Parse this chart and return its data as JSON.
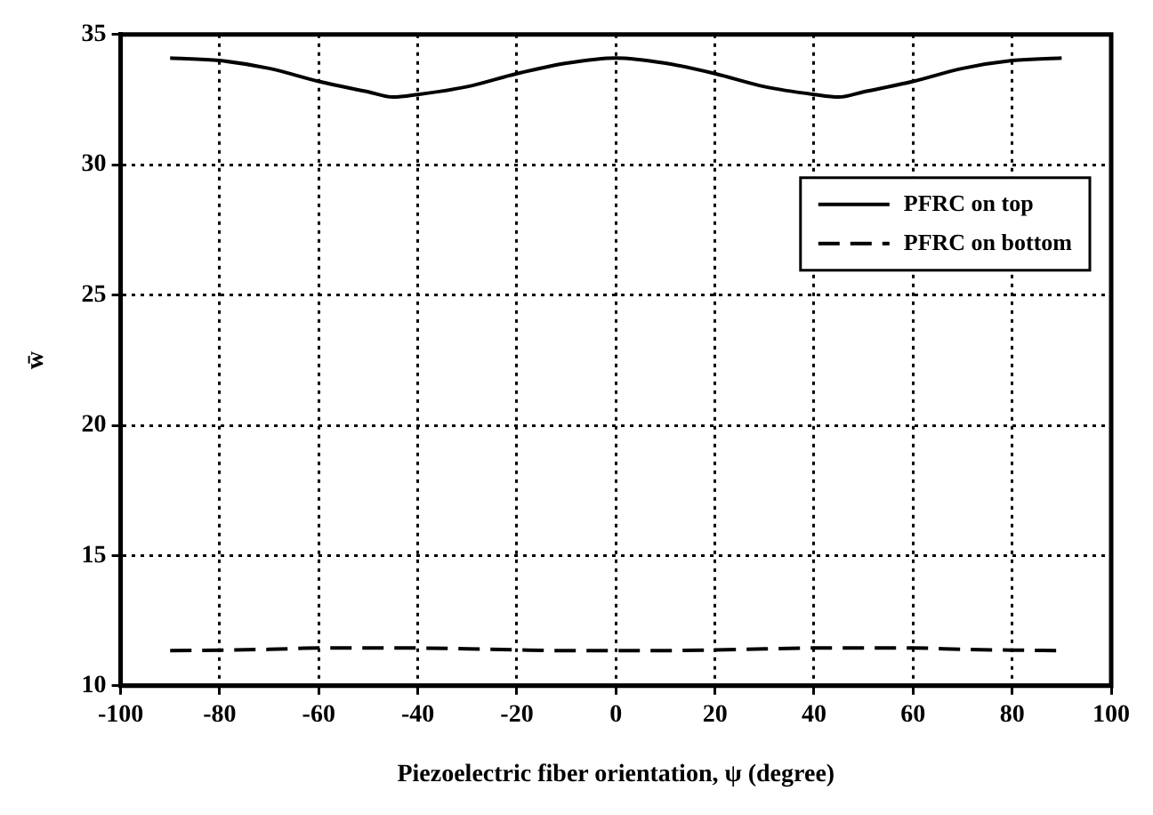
{
  "chart_data": {
    "type": "line",
    "xlabel": "Piezoelectric fiber orientation, ψ (degree)",
    "ylabel": "w̄",
    "x": [
      -90,
      -80,
      -70,
      -60,
      -50,
      -45,
      -40,
      -30,
      -20,
      -10,
      0,
      10,
      20,
      30,
      40,
      45,
      50,
      60,
      70,
      80,
      90
    ],
    "series": [
      {
        "name": "PFRC on top",
        "color": "#000000",
        "line_style": "solid",
        "values": [
          34.1,
          34.0,
          33.7,
          33.2,
          32.8,
          32.6,
          32.7,
          33.0,
          33.5,
          33.9,
          34.1,
          33.9,
          33.5,
          33.0,
          32.7,
          32.6,
          32.8,
          33.2,
          33.7,
          34.0,
          34.1
        ]
      },
      {
        "name": "PFRC on bottom",
        "color": "#000000",
        "line_style": "dashed",
        "values": [
          11.35,
          11.37,
          11.4,
          11.45,
          11.45,
          11.45,
          11.45,
          11.42,
          11.38,
          11.35,
          11.35,
          11.35,
          11.38,
          11.42,
          11.45,
          11.45,
          11.45,
          11.45,
          11.4,
          11.37,
          11.35
        ]
      }
    ],
    "xlim": [
      -100,
      100
    ],
    "xticks": [
      -100,
      -80,
      -60,
      -40,
      -20,
      0,
      20,
      40,
      60,
      80,
      100
    ],
    "ylim": [
      10,
      35
    ],
    "yticks": [
      10,
      15,
      20,
      25,
      30,
      35
    ],
    "grid": true,
    "legend": "top right",
    "marker": "none"
  }
}
